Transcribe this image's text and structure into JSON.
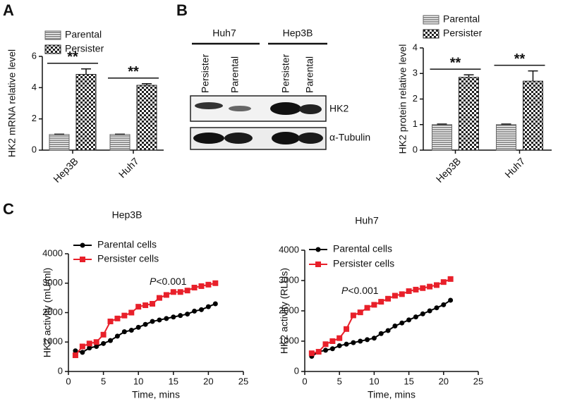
{
  "panel_labels": [
    "A",
    "B",
    "C"
  ],
  "blot": {
    "groups": [
      "Huh7",
      "Hep3B"
    ],
    "lanes": [
      "Persister",
      "Parental",
      "Persister",
      "Parental"
    ],
    "rows": [
      "HK2",
      "α-Tubulin"
    ]
  },
  "chart_data": [
    {
      "type": "bar",
      "y_label": "HK2 mRNA relative level",
      "categories": [
        "Hep3B",
        "Huh7"
      ],
      "series": [
        {
          "name": "Parental",
          "color": "#666",
          "pattern": "lines",
          "values": [
            1,
            1
          ],
          "errors": [
            0.02,
            0.02
          ]
        },
        {
          "name": "Persister",
          "color": "#222",
          "pattern": "checker",
          "values": [
            4.85,
            4.15
          ],
          "errors": [
            0.35,
            0.1
          ]
        }
      ],
      "annotations": [
        "**",
        "**"
      ],
      "ylim": [
        0,
        6
      ],
      "yticks": [
        0,
        2,
        4,
        6
      ]
    },
    {
      "type": "bar",
      "y_label": "HK2 protein relative level",
      "categories": [
        "Hep3B",
        "Huh7"
      ],
      "series": [
        {
          "name": "Parental",
          "color": "#666",
          "pattern": "lines",
          "values": [
            1,
            1
          ],
          "errors": [
            0.02,
            0.02
          ]
        },
        {
          "name": "Persister",
          "color": "#222",
          "pattern": "checker",
          "values": [
            2.85,
            2.7
          ],
          "errors": [
            0.1,
            0.4
          ]
        }
      ],
      "annotations": [
        "**",
        "**"
      ],
      "ylim": [
        0,
        4
      ],
      "yticks": [
        0,
        1,
        2,
        3,
        4
      ]
    },
    {
      "type": "line",
      "title": "Hep3B",
      "x_label": "Time, mins",
      "y_label": "HK2 activity (mU/ml)",
      "annotation": [
        "P",
        "<0.001"
      ],
      "x": [
        1,
        2,
        3,
        4,
        5,
        6,
        7,
        8,
        9,
        10,
        11,
        12,
        13,
        14,
        15,
        16,
        17,
        18,
        19,
        20,
        21
      ],
      "series": [
        {
          "name": "Parental cells",
          "color": "#000",
          "marker": "circle",
          "values": [
            700,
            650,
            800,
            850,
            950,
            1050,
            1200,
            1350,
            1400,
            1500,
            1600,
            1700,
            1750,
            1800,
            1850,
            1900,
            1950,
            2050,
            2100,
            2200,
            2300
          ]
        },
        {
          "name": "Persister cells",
          "color": "#e8202a",
          "marker": "square",
          "values": [
            550,
            850,
            950,
            1000,
            1250,
            1700,
            1800,
            1900,
            2000,
            2200,
            2250,
            2300,
            2500,
            2600,
            2700,
            2700,
            2750,
            2850,
            2900,
            2950,
            3000
          ]
        }
      ],
      "xlim": [
        0,
        25
      ],
      "xticks": [
        0,
        5,
        10,
        15,
        20,
        25
      ],
      "ylim": [
        0,
        4000
      ],
      "yticks": [
        0,
        1000,
        2000,
        3000,
        4000
      ]
    },
    {
      "type": "line",
      "title": "Huh7",
      "x_label": "Time, mins",
      "y_label": "HK2 activity (RLUs)",
      "annotation": [
        "P",
        "<0.001"
      ],
      "x": [
        1,
        2,
        3,
        4,
        5,
        6,
        7,
        8,
        9,
        10,
        11,
        12,
        13,
        14,
        15,
        16,
        17,
        18,
        19,
        20,
        21
      ],
      "series": [
        {
          "name": "Parental cells",
          "color": "#000",
          "marker": "circle",
          "values": [
            500,
            650,
            700,
            750,
            850,
            900,
            950,
            1000,
            1050,
            1100,
            1250,
            1350,
            1500,
            1600,
            1700,
            1800,
            1900,
            2000,
            2100,
            2200,
            2350
          ]
        },
        {
          "name": "Persister cells",
          "color": "#e8202a",
          "marker": "square",
          "values": [
            600,
            650,
            900,
            1000,
            1100,
            1400,
            1850,
            1950,
            2100,
            2200,
            2300,
            2400,
            2500,
            2550,
            2650,
            2700,
            2750,
            2800,
            2850,
            2950,
            3050
          ]
        }
      ],
      "xlim": [
        0,
        25
      ],
      "xticks": [
        0,
        5,
        10,
        15,
        20,
        25
      ],
      "ylim": [
        0,
        4000
      ],
      "yticks": [
        0,
        1000,
        2000,
        3000,
        4000
      ]
    }
  ]
}
